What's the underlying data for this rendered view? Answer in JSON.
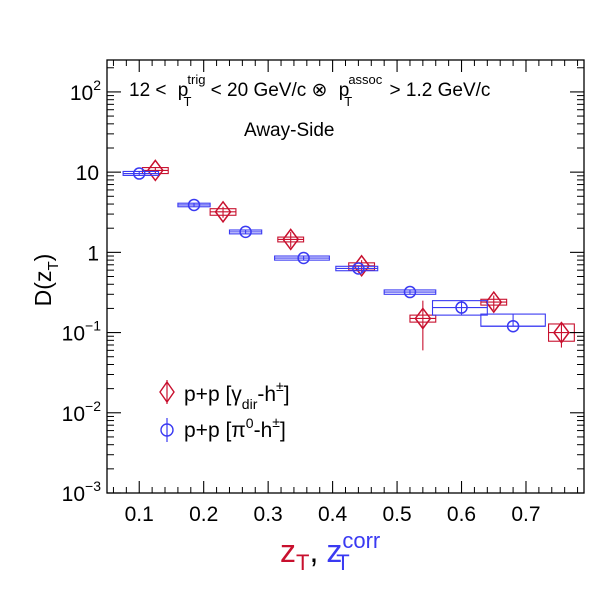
{
  "chart_data": {
    "type": "scatter",
    "annotation": {
      "line1": {
        "prefix": "12 <",
        "p1": "p",
        "p1_sup": "trig",
        "p1_sub": "T",
        "mid": "< 20 GeV/c ⊗",
        "p2": "p",
        "p2_sup": "assoc",
        "p2_sub": "T",
        "suffix": "> 1.2 GeV/c"
      },
      "line2": "Away-Side"
    },
    "xlabel": {
      "z1": "z",
      "z1_sub": "T",
      "comma": ",",
      "z2": "z",
      "z2_sub": "T",
      "z2_sup": "corr",
      "z1_color": "#c8102e",
      "z2_color": "#3a3af2"
    },
    "ylabel": {
      "main": "D(z",
      "sub": "T",
      "close": ")"
    },
    "xlim": [
      0.05,
      0.79
    ],
    "ylim": [
      0.001,
      250
    ],
    "yscale": "log",
    "x_ticks": [
      {
        "value": 0.1,
        "label": "0.1"
      },
      {
        "value": 0.2,
        "label": "0.2"
      },
      {
        "value": 0.3,
        "label": "0.3"
      },
      {
        "value": 0.4,
        "label": "0.4"
      },
      {
        "value": 0.5,
        "label": "0.5"
      },
      {
        "value": 0.6,
        "label": "0.6"
      },
      {
        "value": 0.7,
        "label": "0.7"
      }
    ],
    "y_ticks": [
      {
        "value": 100,
        "base": "10",
        "exp": "2"
      },
      {
        "value": 10,
        "base": "10",
        "exp": ""
      },
      {
        "value": 1,
        "base": "1",
        "exp": ""
      },
      {
        "value": 0.1,
        "base": "10",
        "exp": "−1"
      },
      {
        "value": 0.01,
        "base": "10",
        "exp": "−2"
      },
      {
        "value": 0.001,
        "base": "10",
        "exp": "−3"
      }
    ],
    "legend": {
      "position": "bottom-left",
      "entries": [
        {
          "series": 0,
          "text": "p+p [γ",
          "sub": "dir",
          "tail": "-h",
          "sup": "±",
          "end": "]"
        },
        {
          "series": 1,
          "text": "p+p [π",
          "sup0": "0",
          "tail": "-h",
          "sup": "±",
          "end": "]"
        }
      ]
    },
    "series": [
      {
        "marker": "diamond",
        "color": "#c8102e",
        "points": [
          {
            "x": 0.125,
            "y": 10.5,
            "x_lo": 0.105,
            "x_hi": 0.145,
            "sys_lo": 9.6,
            "sys_hi": 11.4,
            "stat_lo": 9.6,
            "stat_hi": 11.6
          },
          {
            "x": 0.23,
            "y": 3.2,
            "x_lo": 0.21,
            "x_hi": 0.25,
            "sys_lo": 2.9,
            "sys_hi": 3.5,
            "stat_lo": 2.7,
            "stat_hi": 3.7
          },
          {
            "x": 0.335,
            "y": 1.45,
            "x_lo": 0.315,
            "x_hi": 0.355,
            "sys_lo": 1.35,
            "sys_hi": 1.55,
            "stat_lo": 1.15,
            "stat_hi": 1.8
          },
          {
            "x": 0.445,
            "y": 0.68,
            "x_lo": 0.425,
            "x_hi": 0.465,
            "sys_lo": 0.6,
            "sys_hi": 0.74,
            "stat_lo": 0.55,
            "stat_hi": 0.8
          },
          {
            "x": 0.54,
            "y": 0.15,
            "x_lo": 0.52,
            "x_hi": 0.56,
            "sys_lo": 0.135,
            "sys_hi": 0.165,
            "stat_lo": 0.06,
            "stat_hi": 0.25
          },
          {
            "x": 0.65,
            "y": 0.24,
            "x_lo": 0.63,
            "x_hi": 0.67,
            "sys_lo": 0.22,
            "sys_hi": 0.26,
            "stat_lo": 0.19,
            "stat_hi": 0.29
          },
          {
            "x": 0.755,
            "y": 0.1,
            "x_lo": 0.735,
            "x_hi": 0.775,
            "sys_lo": 0.078,
            "sys_hi": 0.128,
            "stat_lo": 0.065,
            "stat_hi": 0.135
          }
        ]
      },
      {
        "marker": "circle",
        "color": "#3a3af2",
        "points": [
          {
            "x": 0.1,
            "y": 9.6,
            "x_lo": 0.075,
            "x_hi": 0.13,
            "sys_lo": 9.1,
            "sys_hi": 10.2,
            "stat_lo": 9.1,
            "stat_hi": 10.2
          },
          {
            "x": 0.185,
            "y": 3.9,
            "x_lo": 0.16,
            "x_hi": 0.21,
            "sys_lo": 3.7,
            "sys_hi": 4.1,
            "stat_lo": 3.7,
            "stat_hi": 4.1
          },
          {
            "x": 0.265,
            "y": 1.8,
            "x_lo": 0.24,
            "x_hi": 0.29,
            "sys_lo": 1.7,
            "sys_hi": 1.9,
            "stat_lo": 1.7,
            "stat_hi": 1.9
          },
          {
            "x": 0.355,
            "y": 0.85,
            "x_lo": 0.31,
            "x_hi": 0.395,
            "sys_lo": 0.8,
            "sys_hi": 0.9,
            "stat_lo": 0.8,
            "stat_hi": 0.9
          },
          {
            "x": 0.44,
            "y": 0.63,
            "x_lo": 0.405,
            "x_hi": 0.47,
            "sys_lo": 0.59,
            "sys_hi": 0.67,
            "stat_lo": 0.59,
            "stat_hi": 0.67
          },
          {
            "x": 0.52,
            "y": 0.32,
            "x_lo": 0.48,
            "x_hi": 0.56,
            "sys_lo": 0.3,
            "sys_hi": 0.34,
            "stat_lo": 0.3,
            "stat_hi": 0.34
          },
          {
            "x": 0.6,
            "y": 0.205,
            "x_lo": 0.555,
            "x_hi": 0.64,
            "sys_lo": 0.165,
            "sys_hi": 0.25,
            "stat_lo": 0.165,
            "stat_hi": 0.25
          },
          {
            "x": 0.68,
            "y": 0.12,
            "x_lo": 0.63,
            "x_hi": 0.73,
            "sys_lo": 0.12,
            "sys_hi": 0.17,
            "stat_lo": 0.12,
            "stat_hi": 0.17
          }
        ]
      }
    ]
  }
}
